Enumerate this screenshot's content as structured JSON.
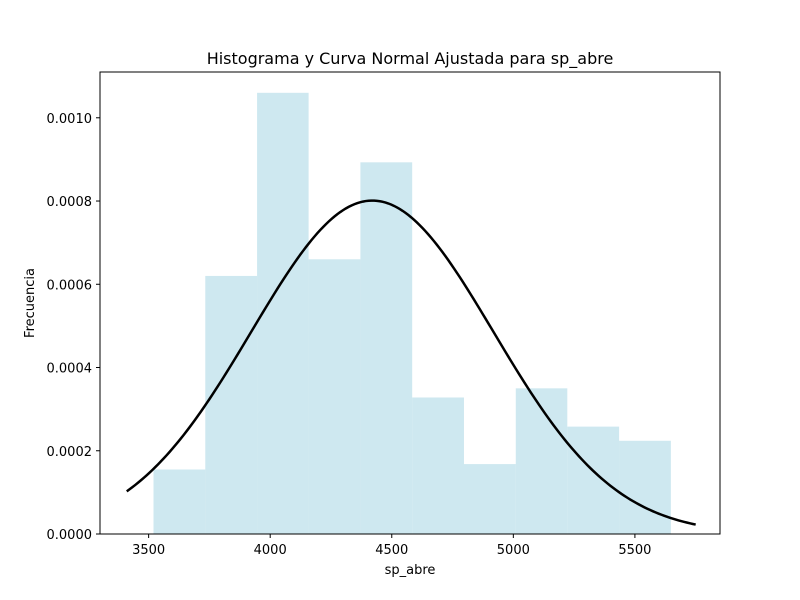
{
  "chart_data": {
    "type": "bar",
    "title": "Histograma y Curva Normal Ajustada para sp_abre",
    "xlabel": "sp_abre",
    "ylabel": "Frecuencia",
    "xlim": [
      3300,
      5850
    ],
    "ylim": [
      0,
      0.00111
    ],
    "xticks": [
      3500,
      4000,
      4500,
      5000,
      5500
    ],
    "xtick_labels": [
      "3500",
      "4000",
      "4500",
      "5000",
      "5500"
    ],
    "yticks": [
      0,
      0.0002,
      0.0004,
      0.0006,
      0.0008,
      0.001
    ],
    "ytick_labels": [
      "0.0000",
      "0.0002",
      "0.0004",
      "0.0006",
      "0.0008",
      "0.0010"
    ],
    "histogram": {
      "bin_edges": [
        3520,
        3733,
        3946,
        4158,
        4371,
        4584,
        4797,
        5010,
        5222,
        5435,
        5648
      ],
      "density": [
        0.000155,
        0.00062,
        0.00106,
        0.00066,
        0.000893,
        0.000328,
        0.000168,
        0.00035,
        0.000258,
        0.000224
      ],
      "color": "#add8e6",
      "alpha": 0.6
    },
    "normal_curve": {
      "mean": 4420,
      "std": 498,
      "x_range": [
        3410,
        5750
      ],
      "color": "#000000"
    },
    "grid": false,
    "legend": "none"
  }
}
